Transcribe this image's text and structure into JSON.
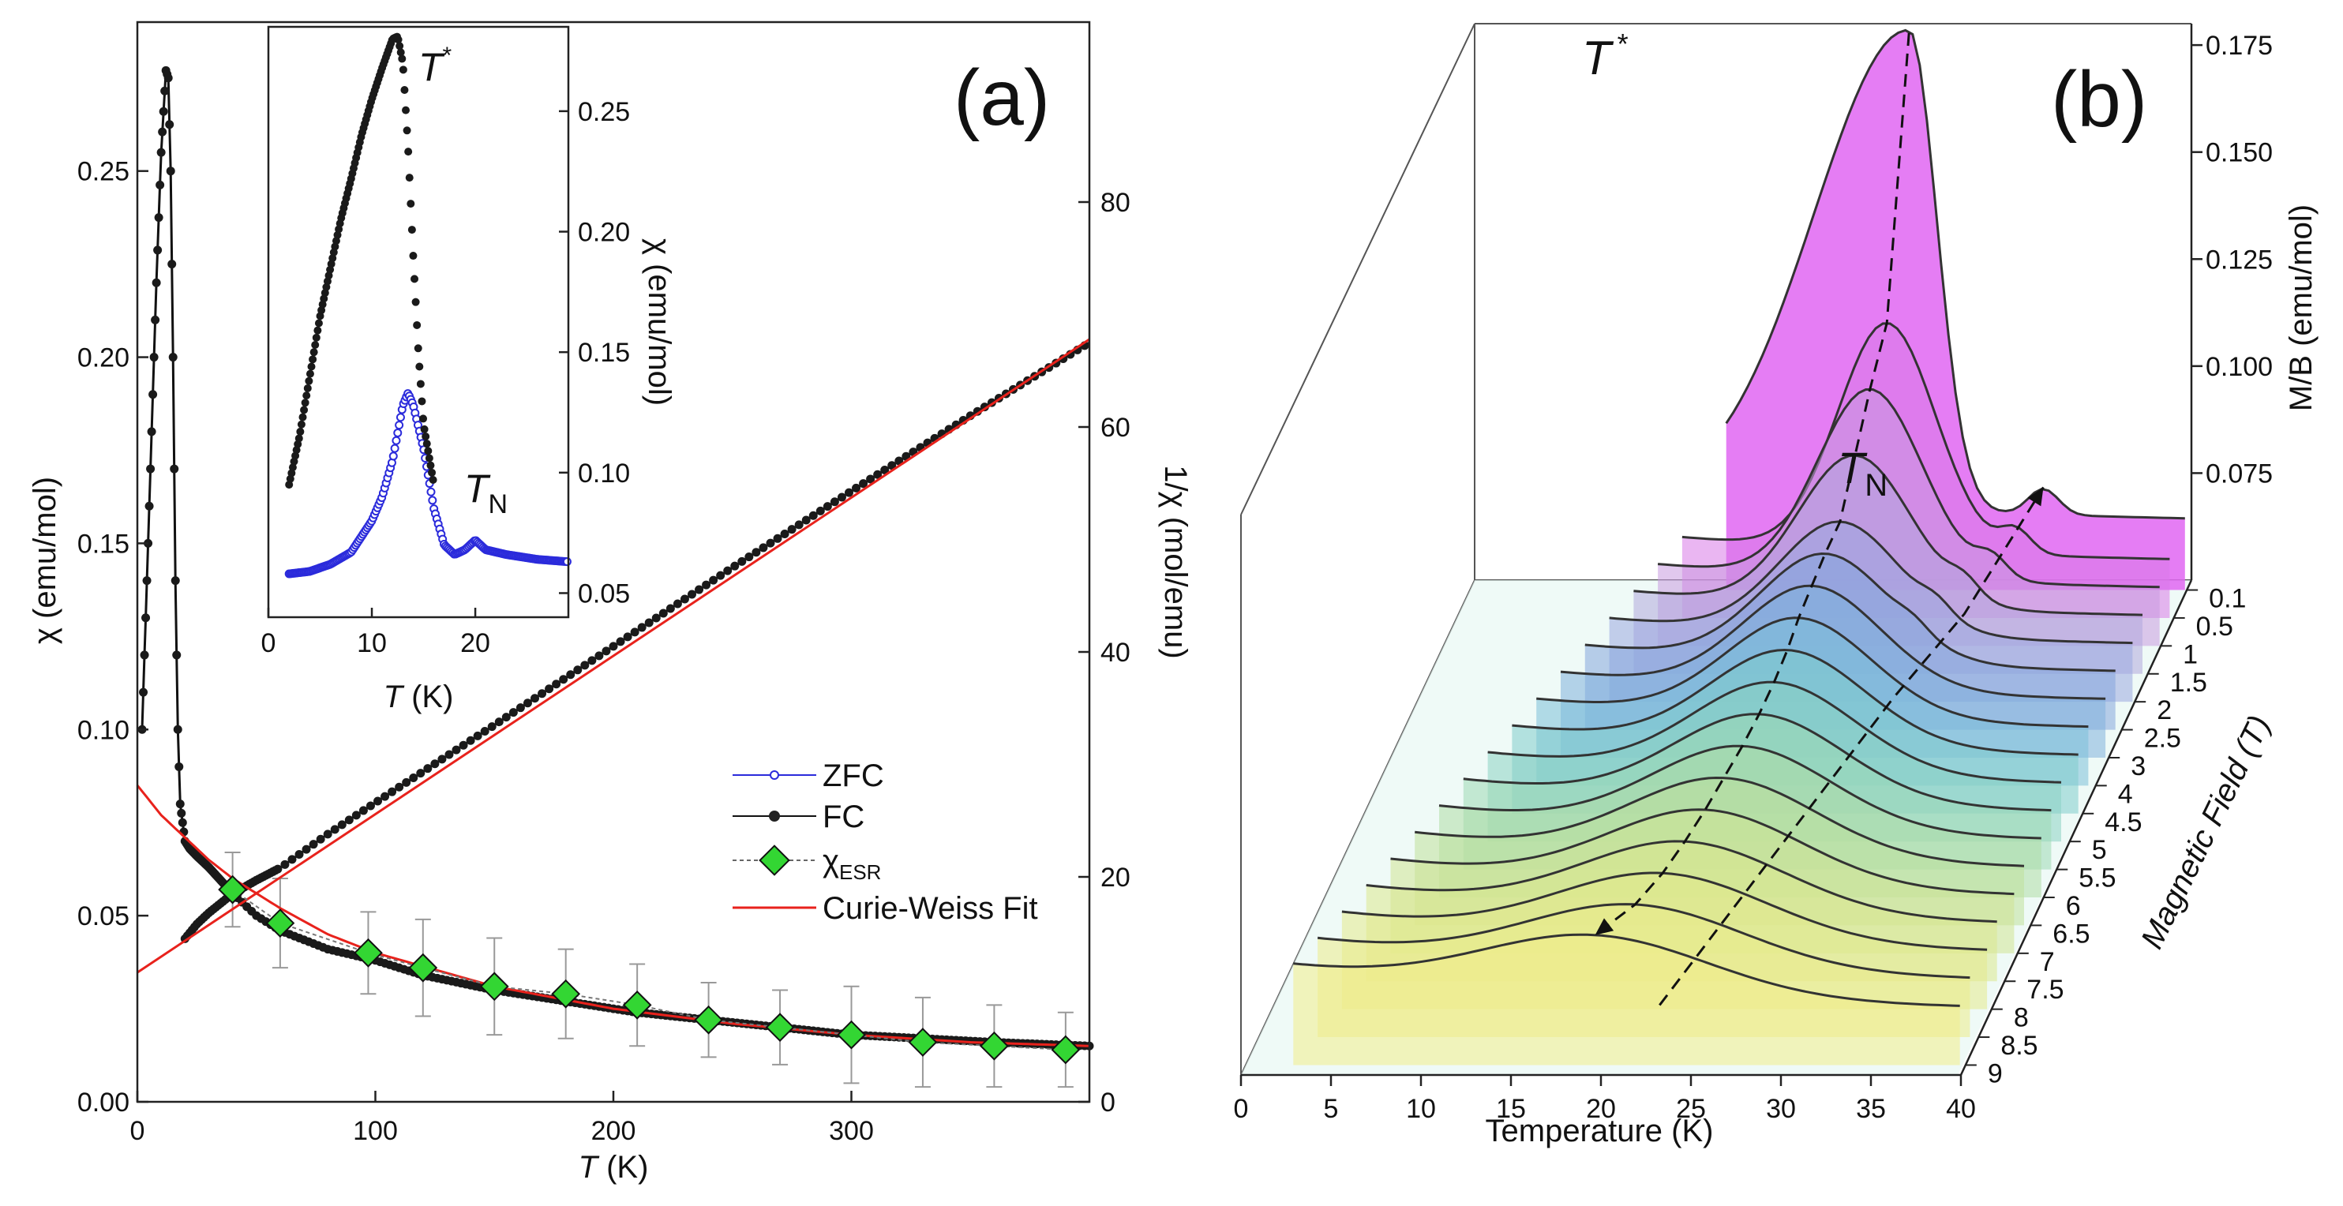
{
  "chart_data": [
    {
      "panel_label": "(a)",
      "type": "line",
      "xlabel_italic": "T",
      "xlabel": " (K)",
      "ylabel_left": "χ (emu/mol)",
      "ylabel_right": "1/χ (mol/emu)",
      "xlim": [
        0,
        400
      ],
      "ylim_left": [
        0,
        0.29
      ],
      "ylim_right": [
        0,
        96
      ],
      "xticks": [
        "0",
        "100",
        "200",
        "300"
      ],
      "yticks_left": [
        "0.00",
        "0.05",
        "0.10",
        "0.15",
        "0.20",
        "0.25"
      ],
      "yticks_right": [
        "0",
        "20",
        "40",
        "60",
        "80"
      ],
      "legend": [
        {
          "label": "ZFC",
          "color": "#2b2bdb"
        },
        {
          "label": "FC",
          "color": "#111111"
        },
        {
          "label": "χ",
          "sub": "ESR",
          "color": "#33d633"
        },
        {
          "label": "Curie-Weiss Fit",
          "color": "#e8221c"
        }
      ],
      "series": [
        {
          "name": "FC",
          "x": [
            2,
            4,
            6,
            8,
            10,
            12,
            13,
            14,
            15,
            16,
            17,
            18,
            20,
            22,
            25,
            30,
            40,
            50,
            60,
            80,
            100,
            120,
            150,
            180,
            210,
            240,
            270,
            300,
            330,
            360,
            400
          ],
          "y": [
            0.1,
            0.14,
            0.18,
            0.22,
            0.255,
            0.277,
            0.275,
            0.25,
            0.2,
            0.14,
            0.1,
            0.08,
            0.07,
            0.068,
            0.066,
            0.063,
            0.056,
            0.05,
            0.046,
            0.041,
            0.038,
            0.034,
            0.03,
            0.027,
            0.024,
            0.022,
            0.02,
            0.018,
            0.017,
            0.016,
            0.015
          ]
        },
        {
          "name": "1/χ",
          "x": [
            20,
            25,
            30,
            40,
            50,
            60,
            80,
            100,
            150,
            200,
            250,
            300,
            350,
            400
          ],
          "y": [
            14.5,
            15.8,
            16.8,
            18.5,
            19.7,
            20.8,
            23.8,
            26.6,
            33.5,
            40.5,
            47.5,
            54.3,
            61.0,
            67.5
          ]
        },
        {
          "name": "Curie-Weiss Fit (1/χ)",
          "x": [
            0,
            400
          ],
          "y": [
            11.5,
            67.8
          ]
        },
        {
          "name": "Curie-Weiss Fit (χ)",
          "x": [
            0,
            10,
            20,
            30,
            40,
            60,
            80,
            100,
            150,
            200,
            250,
            300,
            350,
            400
          ],
          "y": [
            0.085,
            0.077,
            0.071,
            0.065,
            0.06,
            0.052,
            0.045,
            0.04,
            0.031,
            0.025,
            0.021,
            0.018,
            0.016,
            0.015
          ]
        },
        {
          "name": "χESR",
          "x": [
            40,
            60,
            97,
            120,
            150,
            180,
            210,
            240,
            270,
            300,
            330,
            360,
            390
          ],
          "y": [
            0.057,
            0.048,
            0.04,
            0.036,
            0.031,
            0.029,
            0.026,
            0.022,
            0.02,
            0.018,
            0.016,
            0.015,
            0.014
          ],
          "err": [
            0.01,
            0.012,
            0.011,
            0.013,
            0.013,
            0.012,
            0.011,
            0.01,
            0.01,
            0.013,
            0.012,
            0.011,
            0.01
          ]
        }
      ]
    },
    {
      "panel_label": "(a) inset",
      "type": "line",
      "xlabel_italic": "T",
      "xlabel": " (K)",
      "ylabel": "χ (emu/mol)",
      "xlim": [
        0,
        29
      ],
      "ylim": [
        0.04,
        0.285
      ],
      "xticks": [
        "0",
        "10",
        "20"
      ],
      "yticks": [
        "0.05",
        "0.10",
        "0.15",
        "0.20",
        "0.25"
      ],
      "annotations": [
        {
          "text": "T",
          "sup": "*"
        },
        {
          "text": "T",
          "sub": "N"
        }
      ],
      "series": [
        {
          "name": "FC",
          "x": [
            2,
            3,
            4,
            5,
            6,
            7,
            8,
            9,
            10,
            11,
            12,
            12.5,
            13,
            13.5,
            14,
            14.5,
            15,
            16
          ],
          "y": [
            0.095,
            0.115,
            0.14,
            0.165,
            0.185,
            0.205,
            0.222,
            0.24,
            0.255,
            0.268,
            0.28,
            0.281,
            0.27,
            0.235,
            0.19,
            0.15,
            0.12,
            0.095
          ]
        },
        {
          "name": "ZFC",
          "x": [
            2,
            4,
            6,
            8,
            10,
            11,
            12,
            13,
            13.5,
            14,
            15,
            16,
            17,
            18,
            19,
            20,
            21,
            23,
            26,
            29
          ],
          "y": [
            0.058,
            0.059,
            0.062,
            0.067,
            0.08,
            0.09,
            0.105,
            0.128,
            0.133,
            0.128,
            0.11,
            0.085,
            0.07,
            0.066,
            0.068,
            0.072,
            0.068,
            0.066,
            0.064,
            0.063
          ]
        }
      ]
    },
    {
      "panel_label": "(b)",
      "type": "line",
      "xlabel": "Temperature (K)",
      "ylabel": "M/B (emu/mol)",
      "zlabel": "Magnetic Field (T)",
      "xlim": [
        0,
        40
      ],
      "ylim": [
        0.05,
        0.18
      ],
      "xticks": [
        "0",
        "5",
        "10",
        "15",
        "20",
        "25",
        "30",
        "35",
        "40"
      ],
      "yticks": [
        "0.075",
        "0.100",
        "0.125",
        "0.150",
        "0.175"
      ],
      "fields": [
        "0.1",
        "0.5",
        "1",
        "1.5",
        "2",
        "2.5",
        "3",
        "4",
        "4.5",
        "5",
        "5.5",
        "6",
        "6.5",
        "7",
        "7.5",
        "8",
        "8.5",
        "9"
      ],
      "annotations": [
        {
          "text": "T",
          "sup": "*"
        },
        {
          "text": "T",
          "sub": "N"
        }
      ],
      "peak_positions_K": {
        "T_star": [
          24.5,
          24.0,
          23.8,
          23.7,
          23.6,
          23.5,
          23.5,
          23.5,
          23.6,
          23.6,
          23.5,
          23.3,
          23.0,
          22.7,
          22.3,
          21.8,
          21.0,
          19.5
        ],
        "T_N": [
          32.0,
          31.2,
          30.6,
          29.8,
          29.0,
          28.5
        ]
      }
    }
  ]
}
